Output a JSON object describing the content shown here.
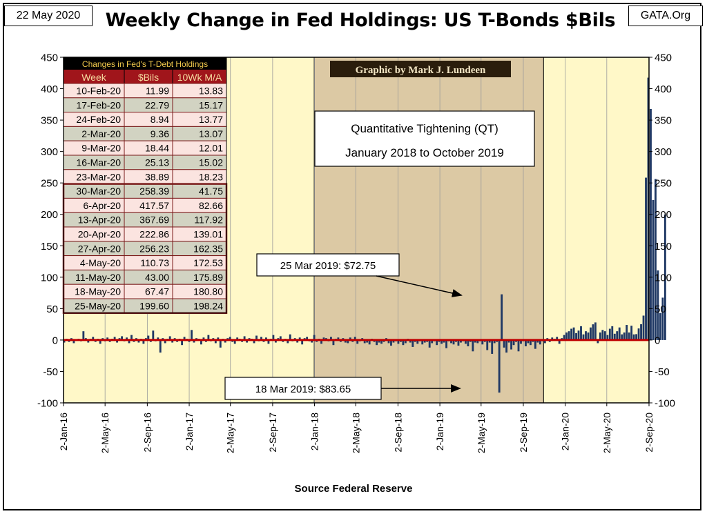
{
  "header": {
    "date": "22 May 2020",
    "site": "GATA.Org",
    "title": "Weekly Change in Fed Holdings: US T-Bonds $Bils"
  },
  "colors": {
    "plot_bg": "#fff8c8",
    "qt_bg": "#dcc9a4",
    "bars": "#1f3864",
    "zero_line": "#c00000",
    "credit_bg": "#2a1d0c",
    "table_header_bg": "#a0151b",
    "table_header_text": "#f6dba0",
    "table_title_text": "#f2c94c",
    "row_pink": "#fbe4e0",
    "row_gray": "#d2d3c2",
    "row_border": "#7a1a1a"
  },
  "credit": "Graphic by Mark J. Lundeen",
  "qt_box": {
    "line1": "Quantitative Tightening (QT)",
    "line2": "January 2018 to October 2019"
  },
  "callouts": {
    "positive": "25 Mar 2019: $72.75",
    "negative": "18 Mar 2019: $83.65"
  },
  "table": {
    "title": "Changes in Fed's T-Debt Holdings",
    "headers": [
      "Week",
      "$Bils",
      "10Wk M/A"
    ],
    "rows": [
      [
        "10-Feb-20",
        "11.99",
        "13.83"
      ],
      [
        "17-Feb-20",
        "22.79",
        "15.17"
      ],
      [
        "24-Feb-20",
        "8.94",
        "13.77"
      ],
      [
        "2-Mar-20",
        "9.36",
        "13.07"
      ],
      [
        "9-Mar-20",
        "18.44",
        "12.01"
      ],
      [
        "16-Mar-20",
        "25.13",
        "15.02"
      ],
      [
        "23-Mar-20",
        "38.89",
        "18.23"
      ],
      [
        "30-Mar-20",
        "258.39",
        "41.75"
      ],
      [
        "6-Apr-20",
        "417.57",
        "82.66"
      ],
      [
        "13-Apr-20",
        "367.69",
        "117.92"
      ],
      [
        "20-Apr-20",
        "222.86",
        "139.01"
      ],
      [
        "27-Apr-20",
        "256.23",
        "162.35"
      ],
      [
        "4-May-20",
        "110.73",
        "172.53"
      ],
      [
        "11-May-20",
        "43.00",
        "175.89"
      ],
      [
        "18-May-20",
        "67.47",
        "180.80"
      ],
      [
        "25-May-20",
        "199.60",
        "198.24"
      ]
    ]
  },
  "chart_data": {
    "type": "bar",
    "title": "Weekly Change in Fed Holdings: US T-Bonds $Bils",
    "xlabel": "Source Federal Reserve",
    "ylabel": "",
    "ylim": [
      -100,
      450
    ],
    "yticks": [
      450,
      400,
      350,
      300,
      250,
      200,
      150,
      100,
      50,
      0,
      -50,
      -100
    ],
    "xlim": [
      "2016-01-02",
      "2020-09-02"
    ],
    "xticks": [
      "2-Jan-16",
      "2-May-16",
      "2-Sep-16",
      "2-Jan-17",
      "2-May-17",
      "2-Sep-17",
      "2-Jan-18",
      "2-May-18",
      "2-Sep-18",
      "2-Jan-19",
      "2-May-19",
      "2-Sep-19",
      "2-Jan-20",
      "2-May-20",
      "2-Sep-20"
    ],
    "grid": "vertical",
    "shaded_period": [
      "2018-01-01",
      "2019-10-31"
    ],
    "series": [
      {
        "start": "2016-01-04",
        "step_days": 7,
        "values": [
          -4,
          2,
          -3,
          3,
          -5,
          1,
          2,
          -2,
          14,
          3,
          -4,
          2,
          5,
          -3,
          2,
          -6,
          3,
          -2,
          4,
          -3,
          2,
          5,
          -4,
          3,
          6,
          -2,
          4,
          -5,
          8,
          -3,
          3,
          -4,
          2,
          -6,
          3,
          7,
          -3,
          15,
          -2,
          4,
          -20,
          3,
          -5,
          2,
          6,
          -4,
          3,
          -3,
          2,
          -8,
          5,
          2,
          -3,
          16,
          -4,
          3,
          2,
          -7,
          4,
          -3,
          8,
          -2,
          3,
          -5,
          4,
          -12,
          2,
          -4,
          3,
          5,
          -3,
          -6,
          4,
          2,
          -3,
          6,
          -4,
          3,
          2,
          -5,
          7,
          -2,
          5,
          -3,
          4,
          -6,
          2,
          8,
          -4,
          3,
          6,
          -3,
          2,
          -5,
          9,
          -2,
          3,
          -4,
          4,
          -7,
          3,
          5,
          -2,
          -4,
          8,
          -3,
          2,
          -6,
          4,
          3,
          -2,
          5,
          -8,
          2,
          4,
          -3,
          3,
          -4,
          -5,
          4,
          -3,
          5,
          -6,
          -2,
          3,
          -5,
          -4,
          -7,
          2,
          -3,
          -8,
          -4,
          -6,
          -3,
          3,
          -5,
          -9,
          -4,
          -2,
          -6,
          -3,
          -8,
          -5,
          2,
          -4,
          -11,
          -3,
          -6,
          -2,
          -7,
          -4,
          -3,
          -12,
          -5,
          -2,
          -8,
          -3,
          -6,
          -4,
          -13,
          -2,
          -5,
          -7,
          -3,
          -9,
          -4,
          -2,
          -6,
          -10,
          -3,
          -18,
          -4,
          -5,
          -2,
          -7,
          -3,
          -16,
          -4,
          -22,
          -5,
          -3,
          -83.65,
          72.75,
          -12,
          -20,
          -4,
          -15,
          -8,
          -3,
          -18,
          -6,
          -2,
          -10,
          -5,
          -8,
          -3,
          -14,
          -4,
          -7,
          -2,
          -5,
          3,
          -3,
          4,
          2,
          5,
          -6,
          3,
          8,
          12,
          14,
          18,
          20,
          11,
          15,
          22,
          9,
          14,
          12,
          20,
          25,
          28,
          -5,
          12,
          16,
          14,
          8,
          18,
          22,
          10,
          14,
          20,
          9,
          12,
          24,
          11.99,
          22.79,
          8.94,
          9.36,
          18.44,
          25.13,
          38.89,
          258.39,
          417.57,
          367.69,
          222.86,
          256.23,
          110.73,
          43.0,
          67.47,
          199.6
        ]
      }
    ]
  },
  "x_axis_label": "Source Federal Reserve"
}
